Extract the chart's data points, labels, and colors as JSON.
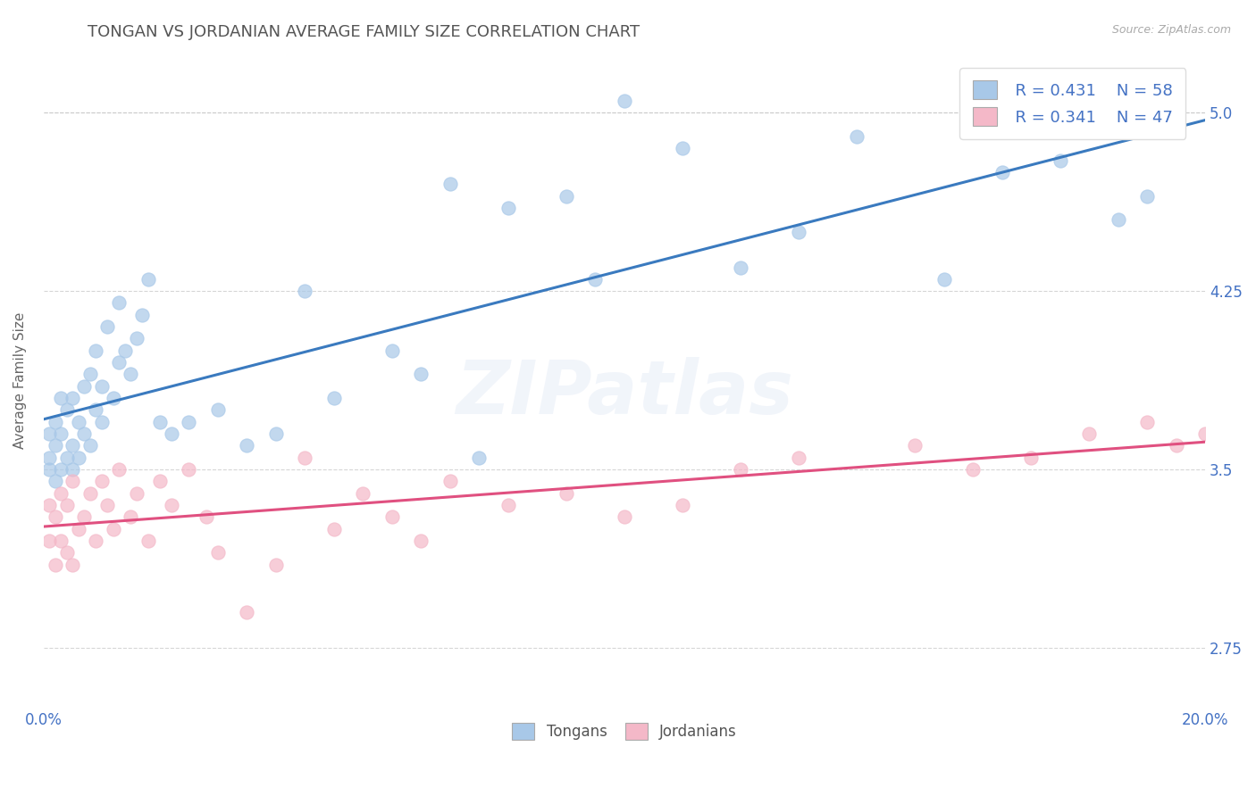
{
  "title": "TONGAN VS JORDANIAN AVERAGE FAMILY SIZE CORRELATION CHART",
  "source": "Source: ZipAtlas.com",
  "ylabel": "Average Family Size",
  "xlim": [
    0.0,
    0.2
  ],
  "ylim": [
    2.5,
    5.25
  ],
  "yticks": [
    2.75,
    3.5,
    4.25,
    5.0
  ],
  "xticks": [
    0.0,
    0.2
  ],
  "xticklabels": [
    "0.0%",
    "20.0%"
  ],
  "legend_labels": [
    "Tongans",
    "Jordanians"
  ],
  "legend_R": [
    "0.431",
    "0.341"
  ],
  "legend_N": [
    "58",
    "47"
  ],
  "tongan_color": "#a8c8e8",
  "jordanian_color": "#f4b8c8",
  "trendline_tongan_color": "#3a7abf",
  "trendline_jordanian_color": "#e05080",
  "background_color": "#ffffff",
  "watermark_text": "ZIPatlas",
  "title_color": "#555555",
  "axis_label_color": "#666666",
  "tick_color": "#4472c4",
  "tongan_scatter": {
    "x": [
      0.001,
      0.001,
      0.001,
      0.002,
      0.002,
      0.002,
      0.003,
      0.003,
      0.003,
      0.004,
      0.004,
      0.005,
      0.005,
      0.005,
      0.006,
      0.006,
      0.007,
      0.007,
      0.008,
      0.008,
      0.009,
      0.009,
      0.01,
      0.01,
      0.011,
      0.012,
      0.013,
      0.013,
      0.014,
      0.015,
      0.016,
      0.017,
      0.018,
      0.02,
      0.022,
      0.025,
      0.03,
      0.035,
      0.04,
      0.045,
      0.05,
      0.06,
      0.065,
      0.07,
      0.075,
      0.08,
      0.09,
      0.095,
      0.1,
      0.11,
      0.12,
      0.13,
      0.14,
      0.155,
      0.165,
      0.175,
      0.185,
      0.19
    ],
    "y": [
      3.5,
      3.55,
      3.65,
      3.45,
      3.6,
      3.7,
      3.5,
      3.65,
      3.8,
      3.55,
      3.75,
      3.5,
      3.6,
      3.8,
      3.55,
      3.7,
      3.65,
      3.85,
      3.6,
      3.9,
      3.75,
      4.0,
      3.7,
      3.85,
      4.1,
      3.8,
      3.95,
      4.2,
      4.0,
      3.9,
      4.05,
      4.15,
      4.3,
      3.7,
      3.65,
      3.7,
      3.75,
      3.6,
      3.65,
      4.25,
      3.8,
      4.0,
      3.9,
      4.7,
      3.55,
      4.6,
      4.65,
      4.3,
      5.05,
      4.85,
      4.35,
      4.5,
      4.9,
      4.3,
      4.75,
      4.8,
      4.55,
      4.65
    ]
  },
  "jordanian_scatter": {
    "x": [
      0.001,
      0.001,
      0.002,
      0.002,
      0.003,
      0.003,
      0.004,
      0.004,
      0.005,
      0.005,
      0.006,
      0.007,
      0.008,
      0.009,
      0.01,
      0.011,
      0.012,
      0.013,
      0.015,
      0.016,
      0.018,
      0.02,
      0.022,
      0.025,
      0.028,
      0.03,
      0.035,
      0.04,
      0.045,
      0.05,
      0.055,
      0.06,
      0.065,
      0.07,
      0.08,
      0.09,
      0.1,
      0.11,
      0.12,
      0.13,
      0.15,
      0.16,
      0.17,
      0.18,
      0.19,
      0.195,
      0.2
    ],
    "y": [
      3.2,
      3.35,
      3.1,
      3.3,
      3.2,
      3.4,
      3.15,
      3.35,
      3.1,
      3.45,
      3.25,
      3.3,
      3.4,
      3.2,
      3.45,
      3.35,
      3.25,
      3.5,
      3.3,
      3.4,
      3.2,
      3.45,
      3.35,
      3.5,
      3.3,
      3.15,
      2.9,
      3.1,
      3.55,
      3.25,
      3.4,
      3.3,
      3.2,
      3.45,
      3.35,
      3.4,
      3.3,
      3.35,
      3.5,
      3.55,
      3.6,
      3.5,
      3.55,
      3.65,
      3.7,
      3.6,
      3.65
    ]
  }
}
